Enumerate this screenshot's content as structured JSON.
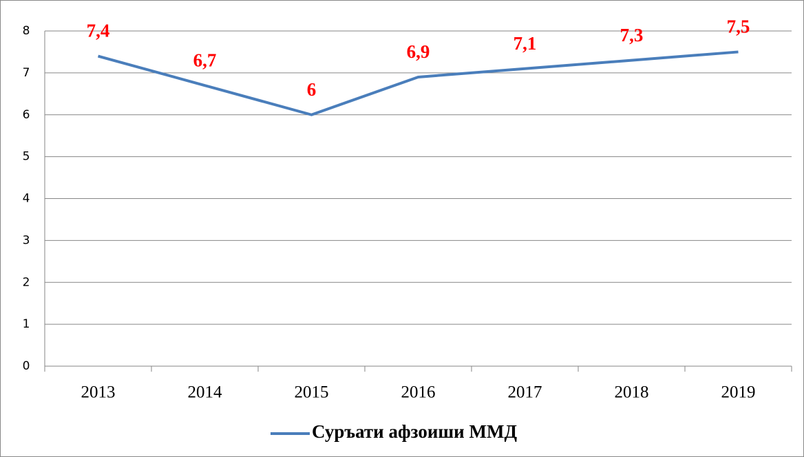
{
  "chart_data": {
    "type": "line",
    "categories": [
      "2013",
      "2014",
      "2015",
      "2016",
      "2017",
      "2018",
      "2019"
    ],
    "series": [
      {
        "name": "Суръати афзоиши ММД",
        "color": "#4a7ebb",
        "values": [
          7.4,
          6.7,
          6,
          6.9,
          7.1,
          7.3,
          7.5
        ],
        "value_labels": [
          "7,4",
          "6,7",
          "6",
          "6,9",
          "7,1",
          "7,3",
          "7,5"
        ],
        "label_color": "#ff0000"
      }
    ],
    "ylim": [
      0,
      8
    ],
    "yticks": [
      0,
      1,
      2,
      3,
      4,
      5,
      6,
      7,
      8
    ],
    "grid": true,
    "legend": "bottom"
  }
}
